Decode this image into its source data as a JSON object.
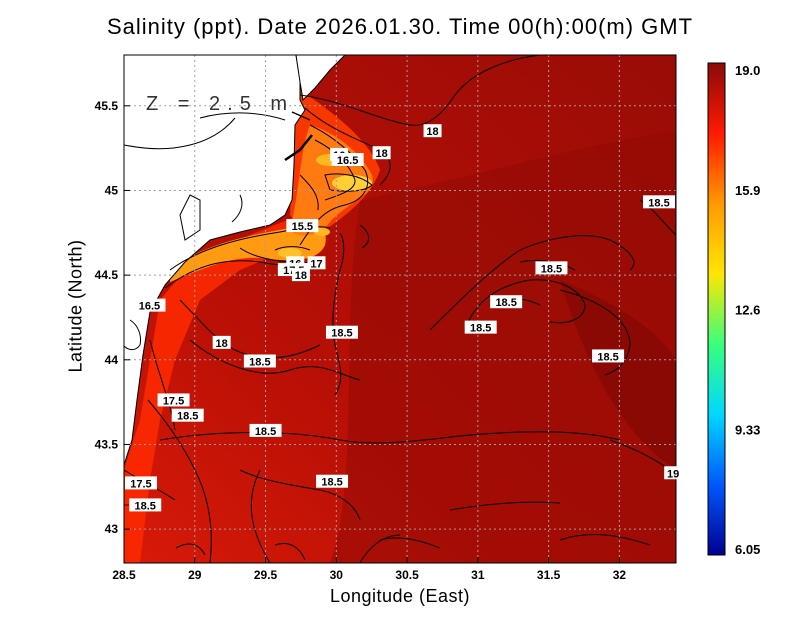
{
  "title": "Salinity (ppt). Date 2026.01.30. Time 00(h):00(m) GMT",
  "depth_label": "Z = 2.5 m",
  "x_axis": {
    "label": "Longitude (East)",
    "ticks": [
      "28.5",
      "29",
      "29.5",
      "30",
      "30.5",
      "31",
      "31.5",
      "32"
    ]
  },
  "y_axis": {
    "label": "Latitude (North)",
    "ticks": [
      "45.5",
      "45",
      "44.5",
      "44",
      "43.5",
      "43"
    ]
  },
  "colorbar": {
    "labels": [
      "19.0",
      "15.9",
      "12.6",
      "9.33",
      "6.05"
    ],
    "colors": [
      "#8b0a0a",
      "#ff1a00",
      "#ff9a00",
      "#ffe600",
      "#39ff7a",
      "#00d8ff",
      "#0058ff",
      "#000090"
    ]
  },
  "contour_labels": [
    {
      "text": "18",
      "lon": 30.68,
      "lat": 45.35
    },
    {
      "text": "18",
      "lon": 30.32,
      "lat": 45.22
    },
    {
      "text": "16",
      "lon": 30.02,
      "lat": 45.21
    },
    {
      "text": "16.5",
      "lon": 30.08,
      "lat": 45.18
    },
    {
      "text": "15.5",
      "lon": 29.76,
      "lat": 44.79
    },
    {
      "text": "16",
      "lon": 29.71,
      "lat": 44.57
    },
    {
      "text": "17.5",
      "lon": 29.7,
      "lat": 44.53
    },
    {
      "text": "17",
      "lon": 29.86,
      "lat": 44.57
    },
    {
      "text": "18",
      "lon": 29.75,
      "lat": 44.5
    },
    {
      "text": "18.5",
      "lon": 32.28,
      "lat": 44.93
    },
    {
      "text": "18.5",
      "lon": 31.52,
      "lat": 44.54
    },
    {
      "text": "18.5",
      "lon": 31.2,
      "lat": 44.34
    },
    {
      "text": "18.5",
      "lon": 31.02,
      "lat": 44.19
    },
    {
      "text": "18.5",
      "lon": 30.04,
      "lat": 44.16
    },
    {
      "text": "18",
      "lon": 29.19,
      "lat": 44.1
    },
    {
      "text": "18.5",
      "lon": 29.46,
      "lat": 43.99
    },
    {
      "text": "18.5",
      "lon": 31.92,
      "lat": 44.02
    },
    {
      "text": "16.5",
      "lon": 28.68,
      "lat": 44.32
    },
    {
      "text": "17.5",
      "lon": 28.85,
      "lat": 43.76
    },
    {
      "text": "18.5",
      "lon": 28.95,
      "lat": 43.67
    },
    {
      "text": "18.5",
      "lon": 29.5,
      "lat": 43.58
    },
    {
      "text": "18.5",
      "lon": 29.97,
      "lat": 43.28
    },
    {
      "text": "17.5",
      "lon": 28.62,
      "lat": 43.27
    },
    {
      "text": "18.5",
      "lon": 28.65,
      "lat": 43.14
    },
    {
      "text": "19",
      "lon": 32.38,
      "lat": 43.33
    }
  ]
}
